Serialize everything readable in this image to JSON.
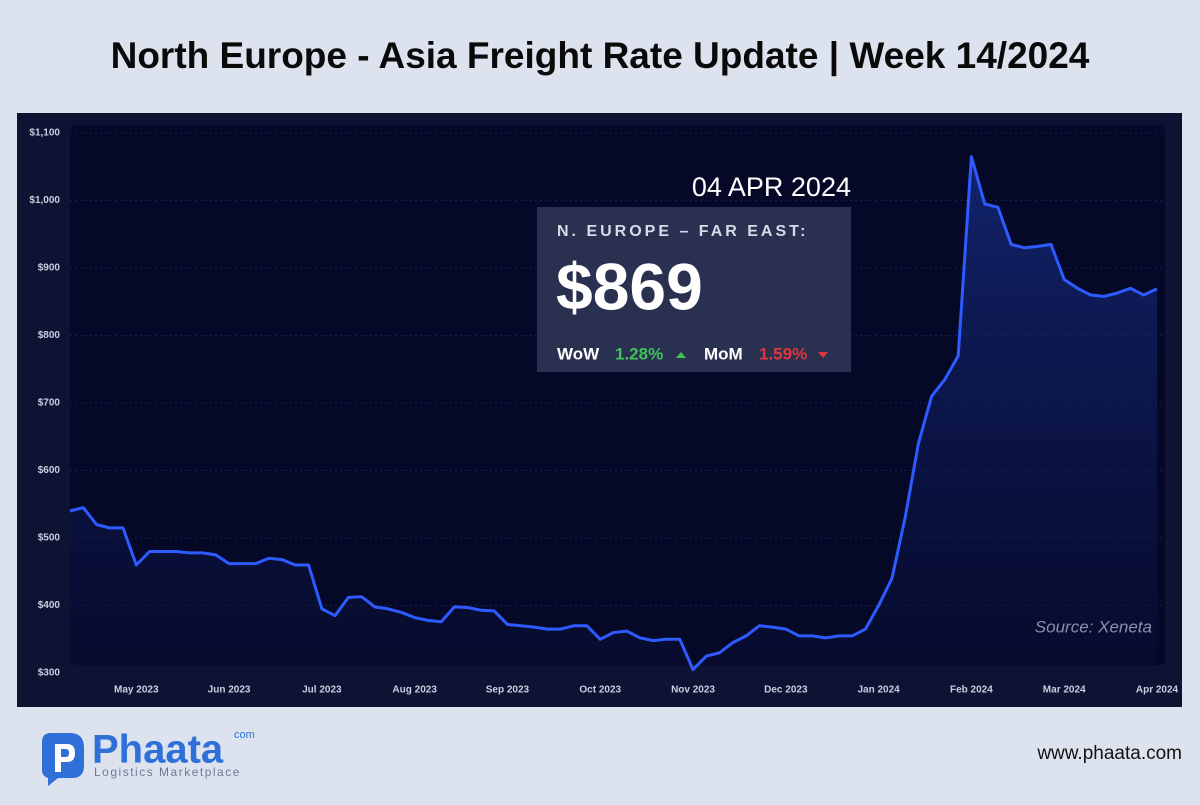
{
  "chart_data": {
    "type": "line",
    "title": "North Europe - Asia Freight Rate Update | Week 14/2024",
    "source": "Source: Xeneta",
    "color": "#2d5bff",
    "grid": true,
    "categories": [
      null,
      null,
      null,
      null,
      null,
      "May 2023",
      null,
      null,
      null,
      null,
      null,
      null,
      "Jun 2023",
      null,
      null,
      null,
      null,
      null,
      null,
      "Jul 2023",
      null,
      null,
      null,
      null,
      null,
      null,
      "Aug 2023",
      null,
      null,
      null,
      null,
      null,
      null,
      "Sep 2023",
      null,
      null,
      null,
      null,
      null,
      null,
      "Oct 2023",
      null,
      null,
      null,
      null,
      null,
      null,
      "Nov 2023",
      null,
      null,
      null,
      null,
      null,
      null,
      "Dec 2023",
      null,
      null,
      null,
      null,
      null,
      null,
      "Jan 2024",
      null,
      null,
      null,
      null,
      null,
      null,
      "Feb 2024",
      null,
      null,
      null,
      null,
      null,
      null,
      "Mar 2024",
      null,
      null,
      null,
      null,
      null,
      null,
      "Apr 2024"
    ],
    "values": [
      540,
      545,
      520,
      515,
      515,
      460,
      480,
      480,
      480,
      478,
      478,
      475,
      462,
      462,
      462,
      470,
      468,
      460,
      460,
      395,
      385,
      412,
      413,
      398,
      395,
      390,
      382,
      378,
      376,
      398,
      397,
      393,
      392,
      372,
      370,
      368,
      365,
      365,
      370,
      370,
      350,
      360,
      362,
      352,
      348,
      350,
      350,
      305,
      325,
      330,
      345,
      355,
      370,
      368,
      365,
      355,
      355,
      352,
      355,
      355,
      365,
      400,
      440,
      530,
      640,
      710,
      735,
      770,
      1065,
      995,
      990,
      935,
      930,
      932,
      935,
      883,
      870,
      860,
      858,
      863,
      870,
      860,
      869
    ],
    "ylim": [
      300,
      1100
    ],
    "yticks": [
      {
        "value": 300,
        "label": "$300"
      },
      {
        "value": 400,
        "label": "$400"
      },
      {
        "value": 500,
        "label": "$500"
      },
      {
        "value": 600,
        "label": "$600"
      },
      {
        "value": 700,
        "label": "$700"
      },
      {
        "value": 800,
        "label": "$800"
      },
      {
        "value": 900,
        "label": "$900"
      },
      {
        "value": 1000,
        "label": "$1,000"
      },
      {
        "value": 1100,
        "label": "$1,100"
      }
    ],
    "callout": {
      "date": "04 APR 2024",
      "route": "N. EUROPE – FAR EAST:",
      "price": "$869",
      "wow_label": "WoW",
      "wow_change": "1.28%",
      "mom_label": "MoM",
      "mom_change": "1.59%"
    }
  },
  "brand": {
    "name": "Phaata",
    "suffix": "com",
    "tagline": "Logistics Marketplace",
    "url": "www.phaata.com"
  }
}
